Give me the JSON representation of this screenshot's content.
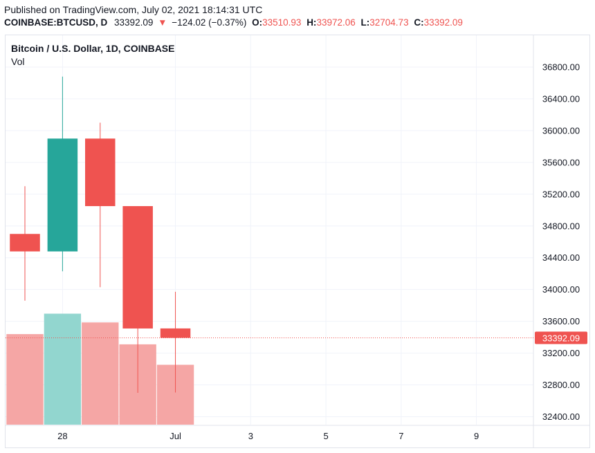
{
  "header": {
    "published": "Published on TradingView.com, July 02, 2021 18:14:31 UTC",
    "symbol": "COINBASE:BTCUSD, D",
    "last": "33392.09",
    "change": "−124.02 (−0.37%)",
    "o_label": "O:",
    "o_value": "33510.93",
    "h_label": "H:",
    "h_value": "33972.06",
    "l_label": "L:",
    "l_value": "32704.73",
    "c_label": "C:",
    "c_value": "33392.09"
  },
  "legend": {
    "title": "Bitcoin / U.S. Dollar, 1D, COINBASE",
    "vol_label": "Vol"
  },
  "colors": {
    "up": "#26a69a",
    "down": "#ef5350",
    "up_volume": "#92d6cf",
    "down_volume": "#f5a6a5",
    "grid": "#f0f3fa",
    "last_price_badge": "#ef5350"
  },
  "chart_data": {
    "type": "candlestick",
    "y_axis": {
      "ticks": [
        32400,
        32800,
        33200,
        33600,
        34000,
        34400,
        34800,
        35200,
        35600,
        36000,
        36400,
        36800
      ],
      "tick_labels": [
        "32400.00",
        "32800.00",
        "33200.00",
        "33600.00",
        "34000.00",
        "34400.00",
        "34800.00",
        "35200.00",
        "35600.00",
        "36000.00",
        "36400.00",
        "36800.00"
      ],
      "range": [
        32300,
        37200
      ]
    },
    "x_axis": {
      "tick_labels": [
        "28",
        "Jul",
        "3",
        "5",
        "7",
        "9"
      ],
      "tick_dates": [
        "2021-06-28",
        "2021-07-01",
        "2021-07-03",
        "2021-07-05",
        "2021-07-07",
        "2021-07-09"
      ],
      "range": [
        "2021-06-27",
        "2021-07-10"
      ]
    },
    "candles": [
      {
        "date": "2021-06-27",
        "open": 34700,
        "high": 35300,
        "low": 33860,
        "close": 34480
      },
      {
        "date": "2021-06-28",
        "open": 34480,
        "high": 36680,
        "low": 34230,
        "close": 35900
      },
      {
        "date": "2021-06-29",
        "open": 35900,
        "high": 36100,
        "low": 34030,
        "close": 35050
      },
      {
        "date": "2021-06-30",
        "open": 35050,
        "high": 35050,
        "low": 32700,
        "close": 33510
      },
      {
        "date": "2021-07-01",
        "open": 33510.93,
        "high": 33972.06,
        "low": 32704.73,
        "close": 33392.09
      }
    ],
    "volume": {
      "label": "Vol",
      "values": [
        0.62,
        0.76,
        0.7,
        0.55,
        0.41
      ],
      "unit": "relative to pane height (no volume scale printed)"
    },
    "last_price": 33392.09,
    "last_price_label": "33392.09",
    "grid": true
  }
}
